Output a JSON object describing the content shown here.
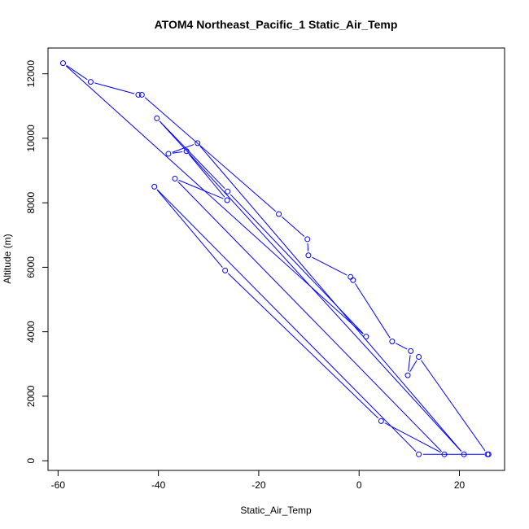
{
  "chart_data": {
    "type": "line",
    "title": "ATOM4 Northeast_Pacific_1 Static_Air_Temp",
    "xlabel": "Static_Air_Temp",
    "ylabel": "Altitude (m)",
    "xlim": [
      -62,
      29
    ],
    "ylim": [
      -300,
      12800
    ],
    "x_ticks": [
      -60,
      -40,
      -20,
      0,
      20
    ],
    "x_tick_labels": [
      "-60",
      "-40",
      "-20",
      "0",
      "20"
    ],
    "y_ticks": [
      0,
      2000,
      4000,
      6000,
      8000,
      10000,
      12000
    ],
    "y_tick_labels": [
      "0",
      "2000",
      "4000",
      "6000",
      "8000",
      "10000",
      "12000"
    ],
    "grid": false,
    "color": "#0000ff",
    "series": [
      {
        "points": [
          [
            25.8,
            200
          ],
          [
            11.9,
            200
          ],
          [
            -40.8,
            8500
          ],
          [
            -26.7,
            5900
          ],
          [
            4.4,
            1230
          ],
          [
            17.0,
            200
          ],
          [
            -36.7,
            8750
          ],
          [
            -26.3,
            8080
          ],
          [
            -34.4,
            9600
          ],
          [
            -38.0,
            9520
          ],
          [
            -32.2,
            9850
          ],
          [
            20.9,
            200
          ],
          [
            -40.3,
            10620
          ],
          [
            -26.2,
            8350
          ],
          [
            1.4,
            3850
          ],
          [
            -59.0,
            12330
          ],
          [
            -53.5,
            11750
          ],
          [
            -44.0,
            11350
          ],
          [
            -43.3,
            11350
          ],
          [
            -16.0,
            7650
          ],
          [
            -10.3,
            6870
          ],
          [
            -10.1,
            6370
          ],
          [
            -1.7,
            5700
          ],
          [
            -1.2,
            5600
          ],
          [
            6.6,
            3700
          ],
          [
            10.3,
            3400
          ],
          [
            9.7,
            2650
          ],
          [
            11.9,
            3220
          ],
          [
            25.6,
            200
          ]
        ]
      }
    ]
  }
}
